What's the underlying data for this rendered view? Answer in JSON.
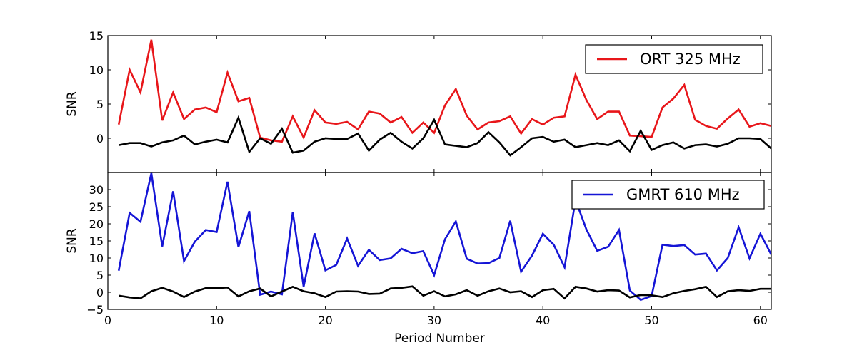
{
  "chart_data": [
    {
      "type": "line",
      "panel": "top",
      "xlabel": "",
      "ylabel": "SNR",
      "xlim": [
        0,
        61
      ],
      "ylim": [
        -5,
        15
      ],
      "yticks": [
        0,
        5,
        10,
        15
      ],
      "xticks": [
        0,
        10,
        20,
        30,
        40,
        50,
        60
      ],
      "show_x_tick_labels": false,
      "legend_position": "top-right",
      "series": [
        {
          "name": "ORT 325 MHz",
          "color": "#e8161a",
          "in_legend": true,
          "x": [
            1,
            2,
            3,
            4,
            5,
            6,
            7,
            8,
            9,
            10,
            11,
            12,
            13,
            14,
            15,
            16,
            17,
            18,
            19,
            20,
            21,
            22,
            23,
            24,
            25,
            26,
            27,
            28,
            29,
            30,
            31,
            32,
            33,
            34,
            35,
            36,
            37,
            38,
            39,
            40,
            41,
            42,
            43,
            44,
            45,
            46,
            47,
            48,
            49,
            50,
            51,
            52,
            53,
            54,
            55,
            56,
            57,
            58,
            59,
            60,
            61
          ],
          "values": [
            2.0,
            10.0,
            6.7,
            14.4,
            2.6,
            6.7,
            2.8,
            4.2,
            4.5,
            3.8,
            9.6,
            5.4,
            5.9,
            0.1,
            -0.3,
            -0.5,
            3.2,
            0.1,
            4.1,
            2.3,
            2.1,
            2.4,
            1.3,
            3.9,
            3.6,
            2.3,
            3.1,
            0.8,
            2.3,
            0.8,
            4.8,
            7.2,
            3.3,
            1.3,
            2.3,
            2.5,
            3.2,
            0.7,
            2.8,
            2.0,
            3.0,
            3.2,
            9.3,
            5.6,
            2.8,
            3.9,
            3.9,
            0.4,
            0.3,
            0.2,
            4.5,
            5.8,
            7.8,
            2.7,
            1.8,
            1.4,
            2.9,
            4.2,
            1.7,
            2.2,
            1.8
          ]
        },
        {
          "name": "noise",
          "color": "#000000",
          "in_legend": false,
          "x": [
            1,
            2,
            3,
            4,
            5,
            6,
            7,
            8,
            9,
            10,
            11,
            12,
            13,
            14,
            15,
            16,
            17,
            18,
            19,
            20,
            21,
            22,
            23,
            24,
            25,
            26,
            27,
            28,
            29,
            30,
            31,
            32,
            33,
            34,
            35,
            36,
            37,
            38,
            39,
            40,
            41,
            42,
            43,
            44,
            45,
            46,
            47,
            48,
            49,
            50,
            51,
            52,
            53,
            54,
            55,
            56,
            57,
            58,
            59,
            60,
            61
          ],
          "values": [
            -1.0,
            -0.7,
            -0.7,
            -1.2,
            -0.6,
            -0.3,
            0.4,
            -0.9,
            -0.5,
            -0.2,
            -0.6,
            3.0,
            -2.0,
            0.0,
            -0.8,
            1.4,
            -2.1,
            -1.8,
            -0.5,
            0.0,
            -0.1,
            -0.1,
            0.7,
            -1.8,
            -0.2,
            0.8,
            -0.5,
            -1.5,
            0.0,
            2.7,
            -0.9,
            -1.1,
            -1.3,
            -0.7,
            0.9,
            -0.6,
            -2.5,
            -1.3,
            0.0,
            0.2,
            -0.5,
            -0.2,
            -1.3,
            -1.0,
            -0.7,
            -1.0,
            -0.3,
            -1.9,
            1.1,
            -1.7,
            -1.0,
            -0.6,
            -1.5,
            -1.0,
            -0.9,
            -1.2,
            -0.8,
            0.0,
            0.0,
            -0.1,
            -1.5
          ]
        }
      ]
    },
    {
      "type": "line",
      "panel": "bottom",
      "xlabel": "Period Number",
      "ylabel": "SNR",
      "xlim": [
        0,
        61
      ],
      "ylim": [
        -5,
        35
      ],
      "yticks": [
        -5,
        0,
        5,
        10,
        15,
        20,
        25,
        30
      ],
      "xticks": [
        0,
        10,
        20,
        30,
        40,
        50,
        60
      ],
      "show_x_tick_labels": true,
      "legend_position": "top-right",
      "series": [
        {
          "name": "GMRT 610 MHz",
          "color": "#1515d6",
          "in_legend": true,
          "x": [
            1,
            2,
            3,
            4,
            5,
            6,
            7,
            8,
            9,
            10,
            11,
            12,
            13,
            14,
            15,
            16,
            17,
            18,
            19,
            20,
            21,
            22,
            23,
            24,
            25,
            26,
            27,
            28,
            29,
            30,
            31,
            32,
            33,
            34,
            35,
            36,
            37,
            38,
            39,
            40,
            41,
            42,
            43,
            44,
            45,
            46,
            47,
            48,
            49,
            50,
            51,
            52,
            53,
            54,
            55,
            56,
            57,
            58,
            59,
            60,
            61
          ],
          "values": [
            6.3,
            23.2,
            20.6,
            34.8,
            13.4,
            29.5,
            9.1,
            14.8,
            18.2,
            17.6,
            32.3,
            13.2,
            23.7,
            -0.7,
            0.2,
            -0.6,
            23.4,
            1.6,
            17.2,
            6.4,
            8.0,
            15.7,
            7.7,
            12.4,
            9.4,
            9.9,
            12.7,
            11.4,
            12.0,
            5.0,
            15.5,
            20.7,
            9.8,
            8.4,
            8.5,
            10.0,
            20.9,
            6.0,
            10.7,
            17.1,
            13.9,
            7.3,
            27.0,
            18.4,
            12.1,
            13.3,
            18.2,
            0.5,
            -2.2,
            -1.1,
            13.9,
            13.5,
            13.8,
            11.0,
            11.3,
            6.4,
            10.0,
            19.0,
            9.9,
            17.1,
            11.0
          ]
        },
        {
          "name": "noise",
          "color": "#000000",
          "in_legend": false,
          "x": [
            1,
            2,
            3,
            4,
            5,
            6,
            7,
            8,
            9,
            10,
            11,
            12,
            13,
            14,
            15,
            16,
            17,
            18,
            19,
            20,
            21,
            22,
            23,
            24,
            25,
            26,
            27,
            28,
            29,
            30,
            31,
            32,
            33,
            34,
            35,
            36,
            37,
            38,
            39,
            40,
            41,
            42,
            43,
            44,
            45,
            46,
            47,
            48,
            49,
            50,
            51,
            52,
            53,
            54,
            55,
            56,
            57,
            58,
            59,
            60,
            61
          ],
          "values": [
            -1.0,
            -1.5,
            -1.8,
            0.3,
            1.3,
            0.2,
            -1.4,
            0.2,
            1.2,
            1.2,
            1.4,
            -1.2,
            0.3,
            1.1,
            -1.2,
            0.2,
            1.6,
            0.3,
            -0.3,
            -1.4,
            0.2,
            0.3,
            0.2,
            -0.5,
            -0.4,
            1.1,
            1.3,
            1.7,
            -1.0,
            0.3,
            -1.2,
            -0.6,
            0.6,
            -1.0,
            0.3,
            1.1,
            0.0,
            0.3,
            -1.4,
            0.6,
            1.0,
            -1.8,
            1.6,
            1.1,
            0.2,
            0.6,
            0.5,
            -1.5,
            -0.8,
            -0.9,
            -1.4,
            -0.3,
            0.4,
            0.9,
            1.6,
            -1.4,
            0.3,
            0.6,
            0.4,
            1.0,
            1.0
          ]
        }
      ]
    }
  ]
}
